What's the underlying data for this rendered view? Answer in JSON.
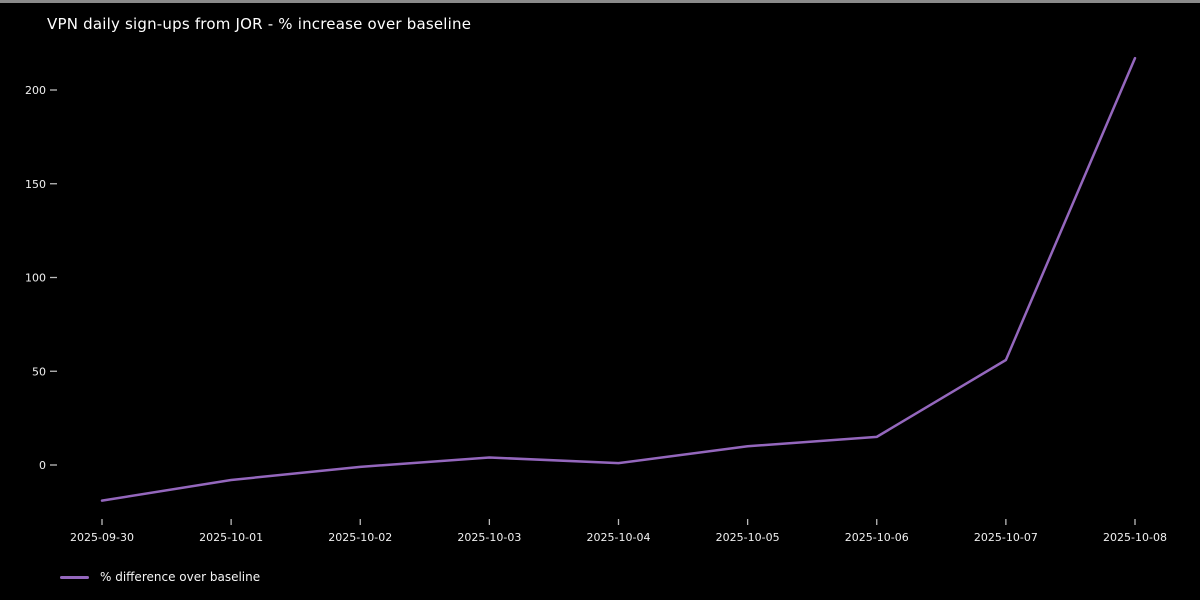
{
  "window": {
    "top_border_color": "#8a8a8a",
    "background_color": "#000000"
  },
  "chart": {
    "title": "VPN daily sign-ups from JOR - % increase over baseline",
    "legend": {
      "label": "% difference over baseline",
      "swatch": "purple-line"
    }
  },
  "chart_data": {
    "type": "line",
    "title": "VPN daily sign-ups from JOR - % increase over baseline",
    "x": [
      "2025-09-30",
      "2025-10-01",
      "2025-10-02",
      "2025-10-03",
      "2025-10-04",
      "2025-10-05",
      "2025-10-06",
      "2025-10-07",
      "2025-10-08"
    ],
    "series": [
      {
        "name": "% difference over baseline",
        "values": [
          -19,
          -8,
          -1,
          4,
          1,
          10,
          15,
          56,
          217
        ],
        "color": "#9467bd",
        "line_width": 2.5
      }
    ],
    "xlabel": "",
    "ylabel": "",
    "yticks": [
      0,
      50,
      100,
      150,
      200
    ],
    "ylim": [
      -30,
      225
    ],
    "grid": false,
    "background": "#000000",
    "text_color": "#f0f0f0",
    "tick_color": "#bbbbbb",
    "legend_position": "lower-left-below-axis"
  }
}
